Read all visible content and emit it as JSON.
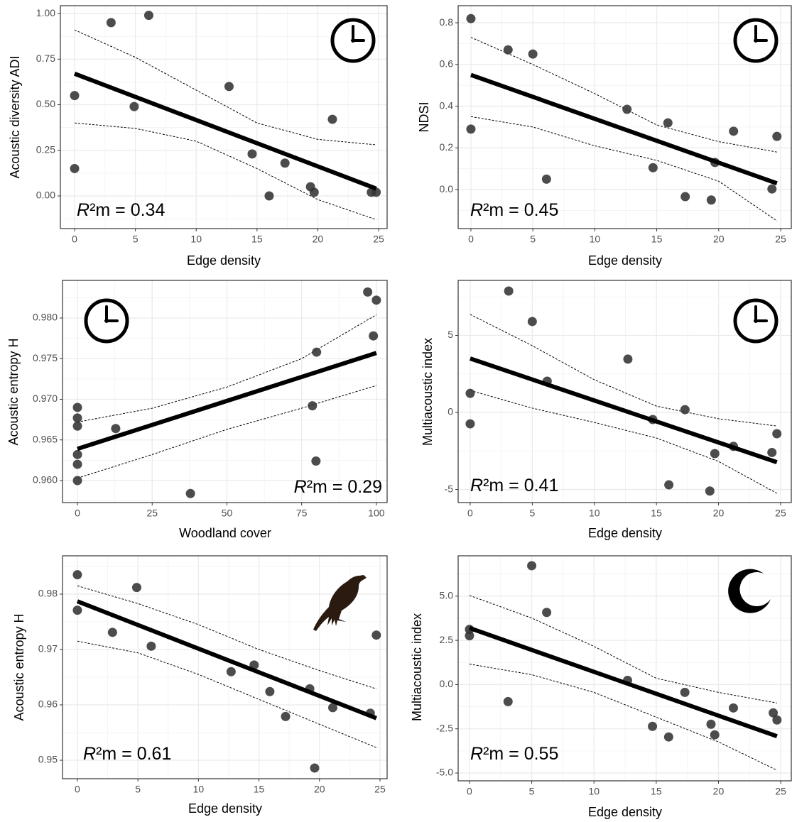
{
  "chart_data": [
    {
      "type": "scatter",
      "x_label": "Edge density",
      "y_label": "Acoustic diversity ADI",
      "annotation_symbol": "R",
      "annotation": "²m = 0.34",
      "color": "#333333",
      "line_color": "#000000",
      "grid": true,
      "x": [
        0,
        0,
        3,
        6.1,
        4.9,
        12.7,
        14.6,
        16.0,
        17.3,
        19.4,
        19.7,
        21.2,
        24.4,
        24.8
      ],
      "y": [
        0.55,
        0.15,
        0.95,
        0.99,
        0.49,
        0.6,
        0.23,
        0.0,
        0.18,
        0.05,
        0.02,
        0.42,
        0.02,
        0.02
      ],
      "fit_x": [
        0,
        24.8
      ],
      "fit_values": [
        0.67,
        0.04
      ],
      "ci_x": [
        0,
        5,
        10,
        15,
        20,
        24.8
      ],
      "ci_upper": [
        0.91,
        0.76,
        0.58,
        0.4,
        0.31,
        0.28
      ],
      "ci_lower": [
        0.4,
        0.37,
        0.3,
        0.15,
        -0.02,
        -0.13
      ],
      "xlim": [
        -1.17,
        25.7
      ],
      "ylim": [
        -0.179,
        1.043
      ],
      "xticks": [
        0,
        5,
        10,
        15,
        20,
        25
      ],
      "yticks": [
        {
          "value": 0,
          "label": "0.00"
        },
        {
          "value": 0.25,
          "label": "0.25"
        },
        {
          "value": 0.5,
          "label": "0.50"
        },
        {
          "value": 0.75,
          "label": "0.75"
        },
        {
          "value": 1,
          "label": "1.00"
        }
      ]
    },
    {
      "type": "scatter",
      "x_label": "Edge density",
      "y_label": "NDSI",
      "annotation_symbol": "R",
      "annotation": "²m = 0.45",
      "color": "#333333",
      "line_color": "#000000",
      "grid": true,
      "x": [
        0,
        0,
        3,
        5,
        6.1,
        12.6,
        15.9,
        14.7,
        17.3,
        19.4,
        19.7,
        21.2,
        24.3,
        24.7
      ],
      "y": [
        0.82,
        0.29,
        0.67,
        0.65,
        0.05,
        0.385,
        0.32,
        0.105,
        -0.034,
        -0.05,
        0.13,
        0.28,
        0.003,
        0.255
      ],
      "fit_x": [
        0,
        24.7
      ],
      "fit_values": [
        0.55,
        0.03
      ],
      "ci_x": [
        0,
        5,
        10,
        15,
        20,
        24.7
      ],
      "ci_upper": [
        0.73,
        0.6,
        0.46,
        0.31,
        0.23,
        0.18
      ],
      "ci_lower": [
        0.35,
        0.3,
        0.21,
        0.14,
        0.04,
        -0.15
      ],
      "xlim": [
        -1.03,
        25.86
      ],
      "ylim": [
        -0.187,
        0.882
      ],
      "xticks": [
        0,
        5,
        10,
        15,
        20,
        25
      ],
      "yticks": [
        {
          "value": 0,
          "label": "0.0"
        },
        0.2,
        0.4,
        0.6,
        0.8
      ]
    },
    {
      "type": "scatter",
      "x_label": "Woodland cover",
      "y_label": "Acoustic entropy H",
      "annotation_symbol": "R",
      "annotation": "²m = 0.29",
      "color": "#333333",
      "line_color": "#000000",
      "grid": true,
      "x": [
        0,
        0,
        0,
        0,
        0,
        0,
        12.8,
        37.8,
        78.6,
        80,
        79.8,
        97.1,
        100,
        99
      ],
      "y": [
        0.969,
        0.9677,
        0.9667,
        0.9632,
        0.962,
        0.96,
        0.9664,
        0.9584,
        0.9692,
        0.9758,
        0.9624,
        0.9832,
        0.9822,
        0.9778
      ],
      "fit_x": [
        0,
        100
      ],
      "fit_values": [
        0.9639,
        0.9757
      ],
      "ci_x": [
        0,
        25,
        50,
        75,
        100
      ],
      "ci_upper": [
        0.9672,
        0.9689,
        0.9715,
        0.975,
        0.9804
      ],
      "ci_lower": [
        0.9603,
        0.9632,
        0.9663,
        0.9689,
        0.9717
      ],
      "xlim": [
        -5,
        103.6
      ],
      "ylim": [
        0.95729,
        0.98463
      ],
      "xticks": [
        0,
        25,
        50,
        75,
        100
      ],
      "yticks": [
        {
          "value": 0.96,
          "label": "0.960"
        },
        0.965,
        {
          "value": 0.97,
          "label": "0.970"
        },
        0.975,
        {
          "value": 0.98,
          "label": "0.980"
        }
      ]
    },
    {
      "type": "scatter",
      "x_label": "Edge density",
      "y_label": "Multiacoustic index",
      "annotation_symbol": "R",
      "annotation": "²m = 0.41",
      "color": "#333333",
      "line_color": "#000000",
      "grid": true,
      "x": [
        3.1,
        5.0,
        0,
        0,
        6.2,
        12.7,
        14.7,
        16.0,
        17.3,
        19.3,
        19.7,
        21.2,
        24.3,
        24.7
      ],
      "y": [
        7.88,
        5.9,
        1.24,
        -0.74,
        2.03,
        3.46,
        -0.46,
        -4.7,
        0.18,
        -5.1,
        -2.67,
        -2.2,
        -2.6,
        -1.38
      ],
      "fit_x": [
        0,
        24.7
      ],
      "fit_values": [
        3.5,
        -3.23
      ],
      "ci_x": [
        0,
        5,
        10,
        15,
        20,
        24.7
      ],
      "ci_upper": [
        6.36,
        4.33,
        2.12,
        0.41,
        -0.41,
        -0.88
      ],
      "ci_lower": [
        1.43,
        0.28,
        -0.65,
        -1.66,
        -3.18,
        -5.25
      ],
      "xlim": [
        -0.97,
        25.86
      ],
      "ylim": [
        -5.85,
        8.57
      ],
      "xticks": [
        0,
        5,
        10,
        15,
        20,
        25
      ],
      "yticks": [
        -5,
        0,
        5
      ]
    },
    {
      "type": "scatter",
      "x_label": "Edge density",
      "y_label": "Acoustic entropy H",
      "annotation_symbol": "R",
      "annotation": "²m = 0.61",
      "color": "#333333",
      "line_color": "#000000",
      "grid": true,
      "x": [
        0,
        0,
        2.9,
        4.9,
        6.1,
        12.7,
        14.6,
        15.9,
        17.2,
        19.2,
        19.6,
        21.1,
        24.2,
        24.7
      ],
      "y": [
        0.9835,
        0.9771,
        0.9731,
        0.9812,
        0.9706,
        0.966,
        0.9672,
        0.9624,
        0.9579,
        0.9629,
        0.9486,
        0.9595,
        0.9585,
        0.9726
      ],
      "fit_x": [
        0,
        24.7
      ],
      "fit_values": [
        0.9787,
        0.9576
      ],
      "ci_x": [
        0,
        5,
        10,
        15,
        20,
        24.7
      ],
      "ci_upper": [
        0.9815,
        0.9783,
        0.9745,
        0.97,
        0.9662,
        0.9629
      ],
      "ci_lower": [
        0.9715,
        0.9694,
        0.9655,
        0.961,
        0.9565,
        0.9523
      ],
      "xlim": [
        -1.23,
        25.59
      ],
      "ylim": [
        0.94667,
        0.98692
      ],
      "xticks": [
        0,
        5,
        10,
        15,
        20,
        25
      ],
      "yticks": [
        0.95,
        0.96,
        0.97,
        0.98
      ]
    },
    {
      "type": "scatter",
      "x_label": "Edge density",
      "y_label": "Multiacoustic index",
      "annotation_symbol": "R",
      "annotation": "²m = 0.55",
      "color": "#333333",
      "line_color": "#000000",
      "grid": true,
      "x": [
        5.0,
        6.2,
        0,
        0,
        3.1,
        12.7,
        14.7,
        16.0,
        17.3,
        19.4,
        19.7,
        21.2,
        24.4,
        24.7
      ],
      "y": [
        6.72,
        4.08,
        3.12,
        2.76,
        -0.96,
        0.24,
        -2.36,
        -2.96,
        -0.44,
        -2.24,
        -2.84,
        -1.32,
        -1.6,
        -2.0
      ],
      "fit_x": [
        0,
        24.7
      ],
      "fit_values": [
        3.2,
        -2.92
      ],
      "ci_x": [
        0,
        5,
        10,
        15,
        20,
        24.7
      ],
      "ci_upper": [
        5.04,
        3.76,
        2.16,
        0.36,
        -0.44,
        -1.04
      ],
      "ci_lower": [
        1.16,
        0.56,
        -0.44,
        -1.84,
        -3.24,
        -4.84
      ],
      "xlim": [
        -0.91,
        25.85
      ],
      "ylim": [
        -5.44,
        7.28
      ],
      "xticks": [
        0,
        5,
        10,
        15,
        20,
        25
      ],
      "yticks": [
        {
          "value": -5,
          "label": "-5.0"
        },
        -2.5,
        {
          "value": 0,
          "label": "0.0"
        },
        2.5,
        {
          "value": 5,
          "label": "5.0"
        }
      ]
    }
  ]
}
